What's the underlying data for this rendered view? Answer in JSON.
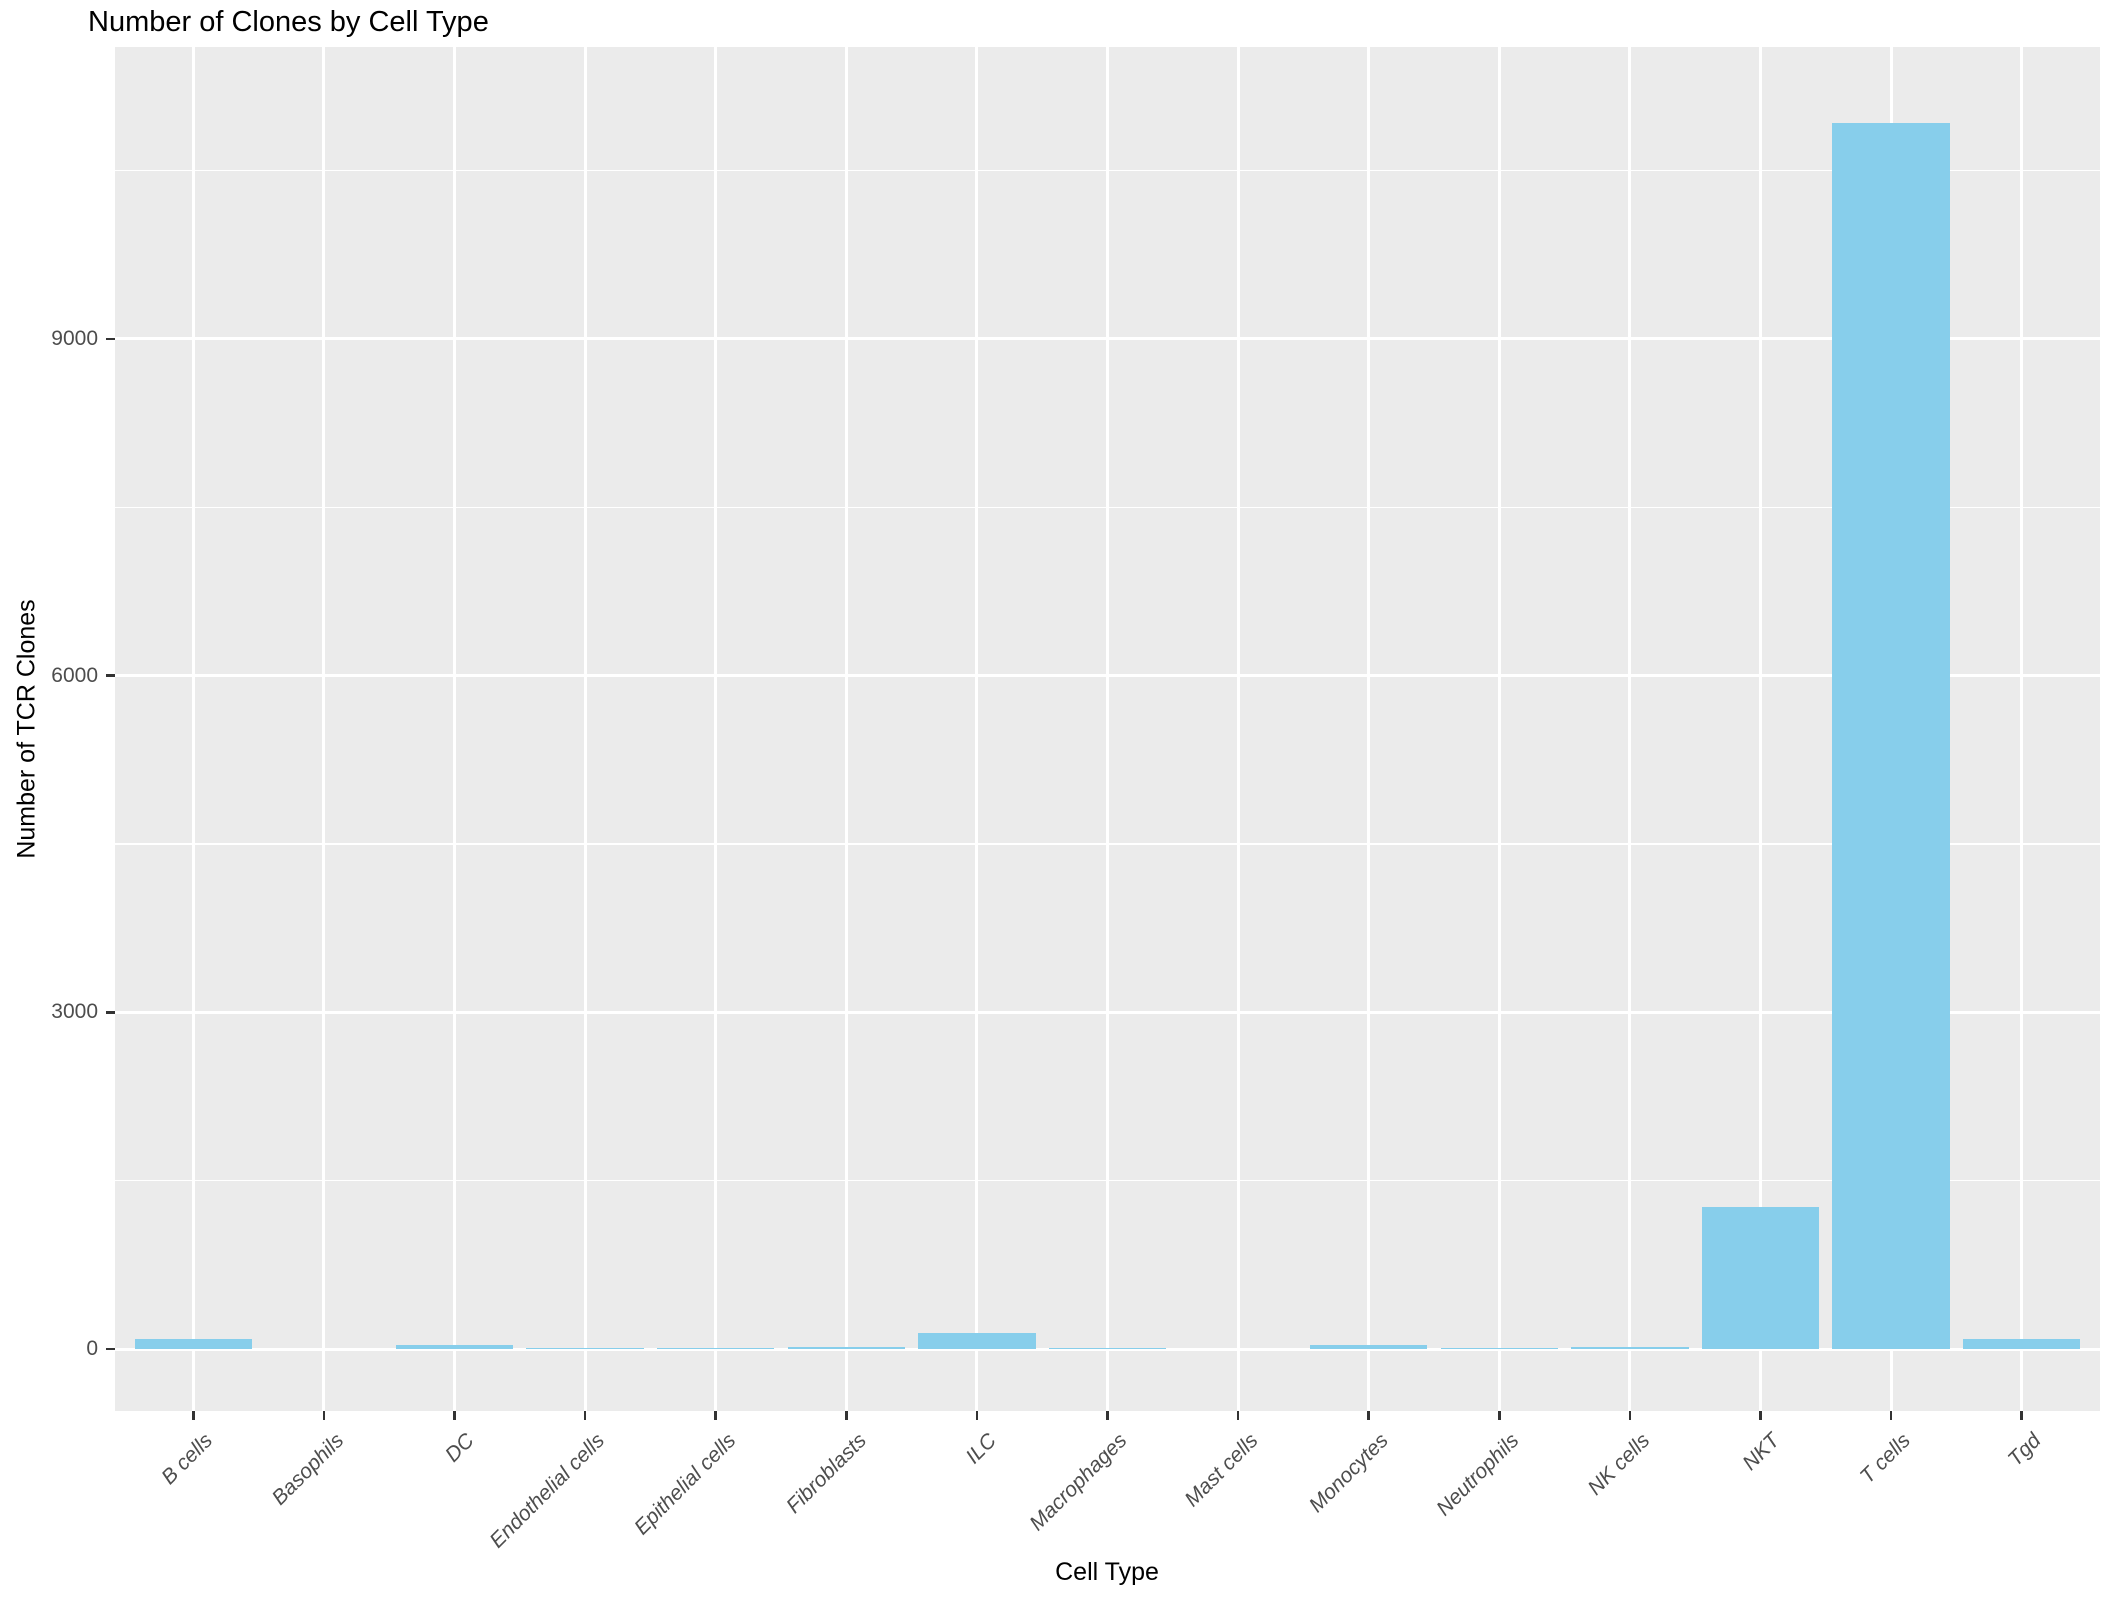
{
  "chart_data": {
    "type": "bar",
    "title": "Number of Clones by Cell Type",
    "xlabel": "Cell Type",
    "ylabel": "Number of TCR Clones",
    "categories": [
      "B cells",
      "Basophils",
      "DC",
      "Endothelial cells",
      "Epithelial cells",
      "Fibroblasts",
      "ILC",
      "Macrophages",
      "Mast cells",
      "Monocytes",
      "Neutrophils",
      "NK cells",
      "NKT",
      "T cells",
      "Tgd"
    ],
    "values": [
      85,
      0,
      33,
      12,
      12,
      15,
      145,
      8,
      0,
      38,
      10,
      15,
      1265,
      10925,
      90
    ],
    "yticks": [
      0,
      3000,
      6000,
      9000
    ],
    "ytick_labels": [
      "0",
      "3000",
      "6000",
      "9000"
    ],
    "yticks_minor": [
      1500,
      4500,
      7500,
      10500
    ],
    "ylim": [
      -550,
      11600
    ],
    "grid": "on",
    "legend": "none",
    "bar_color": "#87CEEB",
    "panel_bg": "#EBEBEB",
    "grid_color": "#FFFFFF",
    "tick_label_color": "#4D4D4D"
  }
}
